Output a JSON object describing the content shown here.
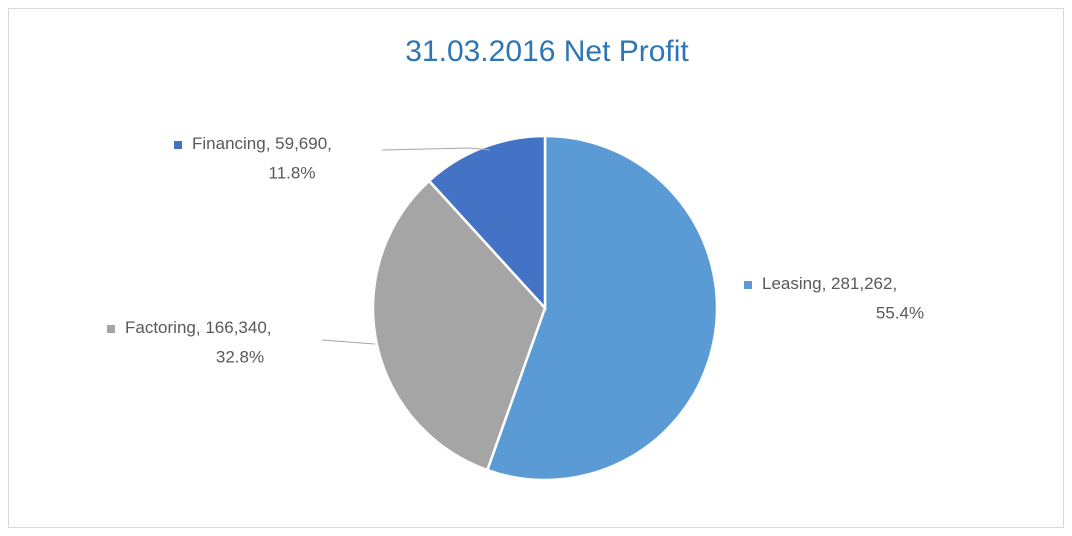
{
  "chart_data": {
    "type": "pie",
    "title": "31.03.2016 Net Profit",
    "categories": [
      "Leasing",
      "Factoring",
      "Financing"
    ],
    "values": [
      281262,
      166340,
      59690
    ],
    "value_labels": [
      "281,262",
      "166,340",
      "59,690"
    ],
    "percent_labels": [
      "55.4%",
      "32.8%",
      "11.8%"
    ],
    "colors": [
      "#5b9bd5",
      "#a5a5a5",
      "#4472c4"
    ]
  }
}
